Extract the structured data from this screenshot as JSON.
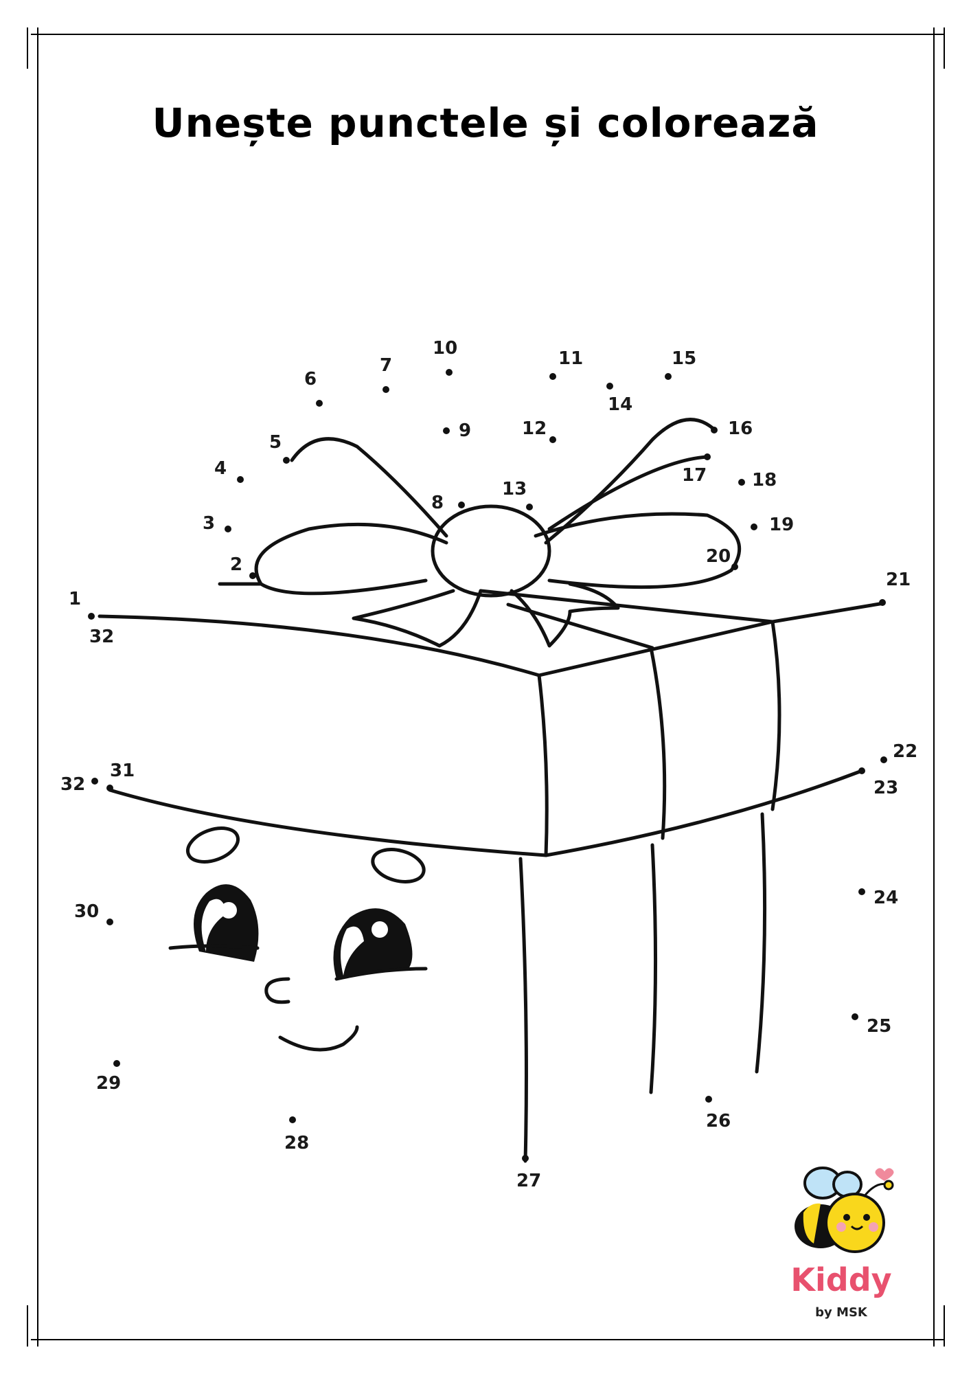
{
  "title": "Unește punctele și colorează",
  "points": [
    {
      "n": "1"
    },
    {
      "n": "32"
    },
    {
      "n": "2"
    },
    {
      "n": "3"
    },
    {
      "n": "4"
    },
    {
      "n": "5"
    },
    {
      "n": "6"
    },
    {
      "n": "7"
    },
    {
      "n": "8"
    },
    {
      "n": "9"
    },
    {
      "n": "10"
    },
    {
      "n": "11"
    },
    {
      "n": "12"
    },
    {
      "n": "13"
    },
    {
      "n": "14"
    },
    {
      "n": "15"
    },
    {
      "n": "16"
    },
    {
      "n": "17"
    },
    {
      "n": "18"
    },
    {
      "n": "19"
    },
    {
      "n": "20"
    },
    {
      "n": "21"
    },
    {
      "n": "22"
    },
    {
      "n": "23"
    },
    {
      "n": "24"
    },
    {
      "n": "25"
    },
    {
      "n": "26"
    },
    {
      "n": "27"
    },
    {
      "n": "28"
    },
    {
      "n": "29"
    },
    {
      "n": "30"
    },
    {
      "n": "31"
    },
    {
      "n": "32"
    }
  ],
  "brand": {
    "name": "Kiddy",
    "sub": "by MSK",
    "color": "#e8516e"
  },
  "colors": {
    "ink": "#000000",
    "bee_yellow": "#f9d71c",
    "bee_wing": "#bfe3f7",
    "heart": "#f08a9c"
  }
}
